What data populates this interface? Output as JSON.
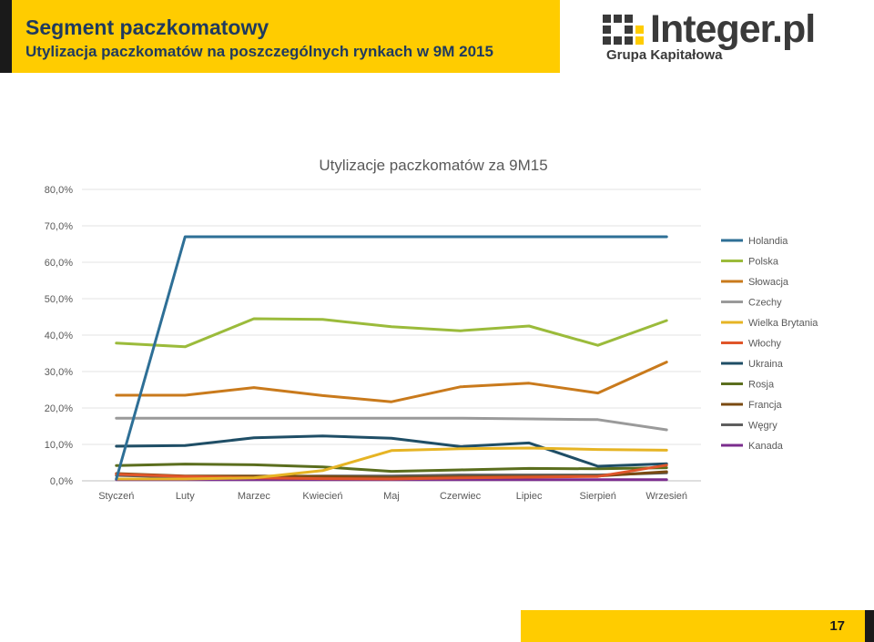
{
  "header": {
    "title": "Segment paczkomatowy",
    "subtitle": "Utylizacja paczkomatów na poszczególnych rynkach w 9M 2015"
  },
  "logo": {
    "wordmark_main": "Integer",
    "wordmark_dot": ".pl",
    "tagline": "Grupa Kapitałowa"
  },
  "footer": {
    "page_number": "17"
  },
  "chart_data": {
    "type": "line",
    "title": "Utylizacje paczkomatów za 9M15",
    "xlabel": "",
    "ylabel": "",
    "categories": [
      "Styczeń",
      "Luty",
      "Marzec",
      "Kwiecień",
      "Maj",
      "Czerwiec",
      "Lipiec",
      "Sierpień",
      "Wrzesień"
    ],
    "ylim": [
      0,
      80
    ],
    "yticks": [
      "0,0%",
      "10,0%",
      "20,0%",
      "30,0%",
      "40,0%",
      "50,0%",
      "60,0%",
      "70,0%",
      "80,0%"
    ],
    "grid": true,
    "legend": "right",
    "series": [
      {
        "name": "Holandia",
        "color": "#2e6f96",
        "values": [
          0.5,
          67.0,
          67.0,
          67.0,
          67.0,
          67.0,
          67.0,
          67.0,
          67.0
        ]
      },
      {
        "name": "Polska",
        "color": "#9bbb3b",
        "values": [
          37.8,
          36.8,
          44.5,
          44.3,
          42.3,
          41.2,
          42.5,
          37.2,
          44.0
        ]
      },
      {
        "name": "Słowacja",
        "color": "#c97a1c",
        "values": [
          23.5,
          23.5,
          25.6,
          23.4,
          21.7,
          25.8,
          26.8,
          24.1,
          32.6
        ]
      },
      {
        "name": "Czechy",
        "color": "#9a9a9a",
        "values": [
          17.2,
          17.2,
          17.2,
          17.2,
          17.2,
          17.2,
          17.0,
          16.8,
          14.0
        ]
      },
      {
        "name": "Wielka Brytania",
        "color": "#e6b424",
        "values": [
          0.5,
          0.5,
          0.8,
          2.8,
          8.3,
          8.8,
          9.0,
          8.6,
          8.4
        ]
      },
      {
        "name": "Włochy",
        "color": "#e0552a",
        "values": [
          1.8,
          1.2,
          0.8,
          0.6,
          0.5,
          0.8,
          1.0,
          1.2,
          4.3
        ]
      },
      {
        "name": "Ukraina",
        "color": "#1f4e66",
        "values": [
          9.5,
          9.7,
          11.8,
          12.3,
          11.7,
          9.4,
          10.4,
          4.0,
          4.7
        ]
      },
      {
        "name": "Rosja",
        "color": "#5b6e1e",
        "values": [
          4.2,
          4.6,
          4.4,
          3.8,
          2.6,
          3.0,
          3.4,
          3.3,
          3.6
        ]
      },
      {
        "name": "Francja",
        "color": "#7a4a12",
        "values": [
          2.0,
          1.3,
          1.3,
          1.2,
          0.9,
          1.1,
          1.2,
          1.3,
          2.5
        ]
      },
      {
        "name": "Węgry",
        "color": "#5e5e5e",
        "values": [
          1.5,
          1.0,
          1.2,
          1.3,
          1.3,
          1.6,
          1.6,
          1.6,
          2.2
        ]
      },
      {
        "name": "Kanada",
        "color": "#7b2d8e",
        "values": [
          0.3,
          0.3,
          0.3,
          0.3,
          0.3,
          0.3,
          0.3,
          0.3,
          0.3
        ]
      }
    ]
  }
}
